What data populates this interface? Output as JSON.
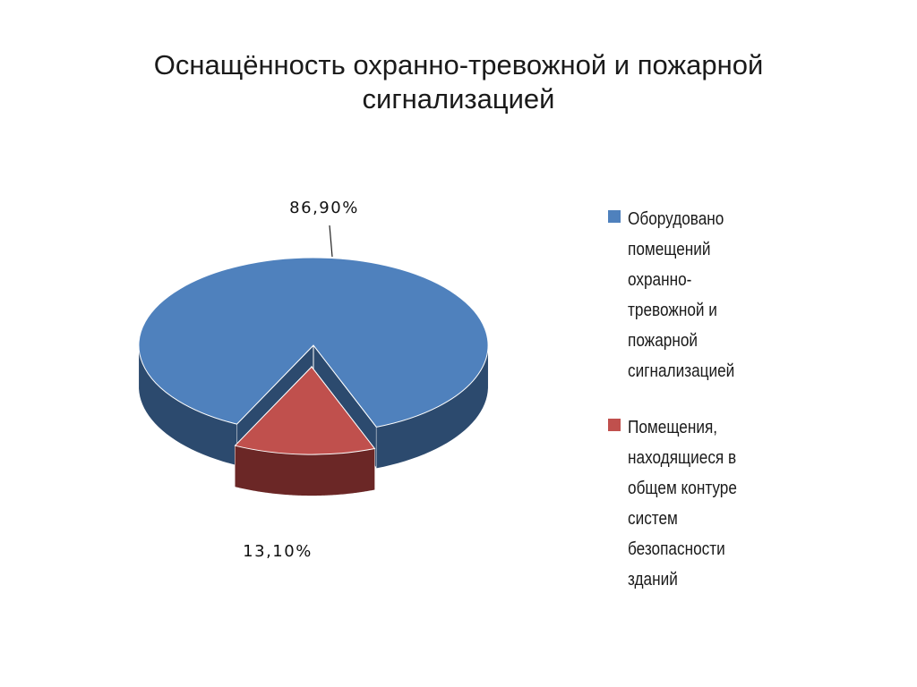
{
  "chart_data": {
    "type": "pie",
    "title_lines": [
      "Оснащённость охранно-тревожной и пожарной",
      "сигнализацией"
    ],
    "slices": [
      {
        "name_lines": [
          "Оборудовано",
          "помещений",
          "охранно-",
          "тревожной и",
          "пожарной",
          "сигнализацией"
        ],
        "value": 86.9,
        "label": "86,90%",
        "color": "#4f81bd",
        "side_color": "#2c4a6e"
      },
      {
        "name_lines": [
          "Помещения,",
          "находящиеся в",
          "общем контуре",
          "систем",
          "безопасности",
          "зданий"
        ],
        "value": 13.1,
        "label": "13,10%",
        "color": "#c0504d",
        "side_color": "#6b2726",
        "exploded": true
      }
    ],
    "legend_position": "right",
    "style": "3d-pie"
  }
}
